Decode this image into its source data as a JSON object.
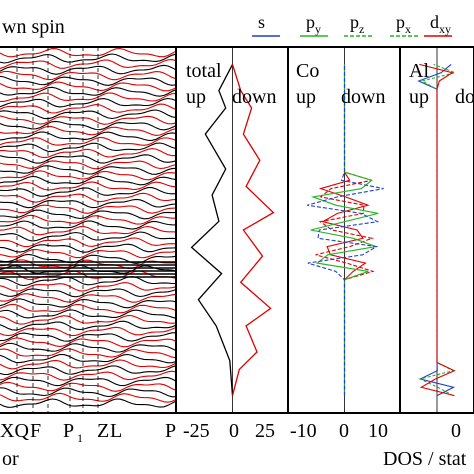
{
  "chart_data": [
    {
      "type": "line",
      "panel": "band-structure",
      "title": "wn spin",
      "xlabel": "",
      "ylabel": "",
      "tick_labels": [
        "XQ",
        "F",
        "P",
        "1",
        "Z",
        "L",
        "P"
      ],
      "series": [
        {
          "color": "#e00000",
          "style": "solid",
          "values": [
            -0.2,
            0.1,
            0.3,
            0.5,
            0.7,
            1.0
          ]
        },
        {
          "color": "#000000",
          "style": "solid",
          "values": [
            -0.1,
            0.2,
            0.4,
            0.6,
            0.8,
            1.1
          ]
        }
      ]
    },
    {
      "type": "line",
      "panel": "total-dos",
      "annotations": [
        "total",
        "up",
        "down"
      ],
      "xlim": [
        -40,
        40
      ],
      "x_ticks": [
        "-25",
        "0",
        "25"
      ],
      "series": [
        {
          "color": "#000000",
          "points": [
            [
              0,
              -0.5
            ],
            [
              -2,
              -0.3
            ],
            [
              -12,
              -0.1
            ],
            [
              -25,
              0.05
            ],
            [
              -8,
              0.2
            ],
            [
              -30,
              0.35
            ],
            [
              -10,
              0.5
            ],
            [
              -15,
              0.65
            ],
            [
              -5,
              0.8
            ],
            [
              -20,
              1.0
            ],
            [
              -5,
              1.15
            ],
            [
              -10,
              1.25
            ],
            [
              0,
              1.4
            ]
          ]
        },
        {
          "color": "#e00000",
          "points": [
            [
              0,
              -0.5
            ],
            [
              5,
              -0.35
            ],
            [
              18,
              -0.25
            ],
            [
              10,
              -0.1
            ],
            [
              28,
              0.0
            ],
            [
              6,
              0.15
            ],
            [
              22,
              0.3
            ],
            [
              8,
              0.45
            ],
            [
              30,
              0.55
            ],
            [
              10,
              0.7
            ],
            [
              20,
              0.85
            ],
            [
              8,
              1.0
            ],
            [
              14,
              1.15
            ],
            [
              6,
              1.25
            ],
            [
              0,
              1.4
            ]
          ]
        }
      ]
    },
    {
      "type": "line",
      "panel": "co-dos",
      "annotations": [
        "Co",
        "up",
        "down"
      ],
      "xlim": [
        -16,
        16
      ],
      "x_ticks": [
        "-10",
        "0",
        "10"
      ]
    },
    {
      "type": "line",
      "panel": "al-dos",
      "annotations": [
        "Al",
        "up",
        "do"
      ],
      "xlim": [
        -3,
        3
      ],
      "x_ticks": [
        "0"
      ]
    }
  ],
  "legend": {
    "items": [
      {
        "label": "s",
        "sub": "",
        "color": "#1f3fd0",
        "dash": "solid"
      },
      {
        "label": "p",
        "sub": "y",
        "color": "#22b522",
        "dash": "solid"
      },
      {
        "label": "p",
        "sub": "z",
        "color": "#22b522",
        "dash": "dashed"
      },
      {
        "label": "p",
        "sub": "x",
        "color": "#22b522",
        "dash": "dashed"
      },
      {
        "label": "d",
        "sub": "xy",
        "color": "#e00000",
        "dash": "solid"
      }
    ]
  },
  "bottom": {
    "left_text": "or",
    "right_text": "DOS / stat"
  },
  "colors": {
    "spin_up": "#000000",
    "spin_down": "#e00000",
    "frame": "#000000"
  }
}
